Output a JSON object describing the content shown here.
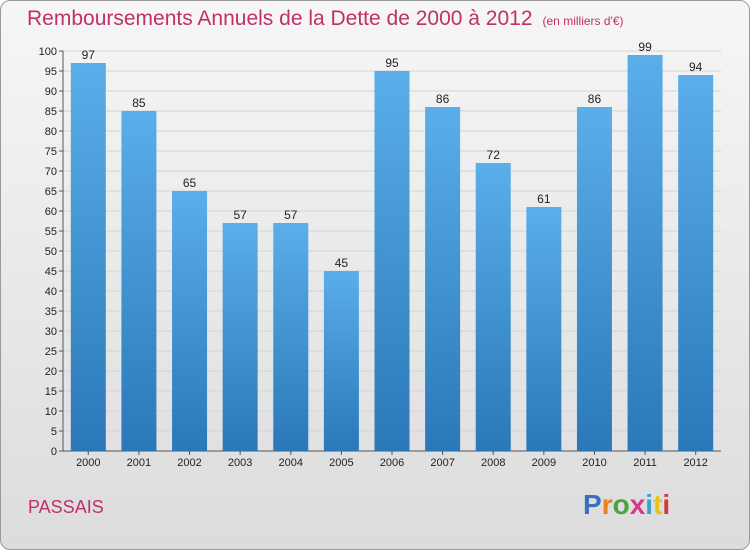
{
  "header": {
    "title": "Remboursements Annuels de la Dette de 2000 à 2012",
    "unit": "(en milliers d'€)"
  },
  "footer": {
    "commune": "PASSAIS",
    "logo_letters": [
      "P",
      "r",
      "o",
      "x",
      "i",
      "t",
      "i"
    ]
  },
  "colors": {
    "title": "#c0306a",
    "bar_top": "#5aaeea",
    "bar_bottom": "#2a78b8",
    "logo": [
      "#3a6fc0",
      "#e8821e",
      "#4ba33a",
      "#d43a8a",
      "#3aa0d8",
      "#e8c21e",
      "#d43a3a"
    ]
  },
  "chart_data": {
    "type": "bar",
    "title": "Remboursements Annuels de la Dette de 2000 à 2012",
    "subtitle": "(en milliers d'€)",
    "categories": [
      "2000",
      "2001",
      "2002",
      "2003",
      "2004",
      "2005",
      "2006",
      "2007",
      "2008",
      "2009",
      "2010",
      "2011",
      "2012"
    ],
    "values": [
      97,
      85,
      65,
      57,
      57,
      45,
      95,
      86,
      72,
      61,
      86,
      99,
      94
    ],
    "ylim": [
      0,
      100
    ],
    "yticks": [
      0,
      5,
      10,
      15,
      20,
      25,
      30,
      35,
      40,
      45,
      50,
      55,
      60,
      65,
      70,
      75,
      80,
      85,
      90,
      95,
      100
    ],
    "grid": true,
    "legend": "none"
  }
}
